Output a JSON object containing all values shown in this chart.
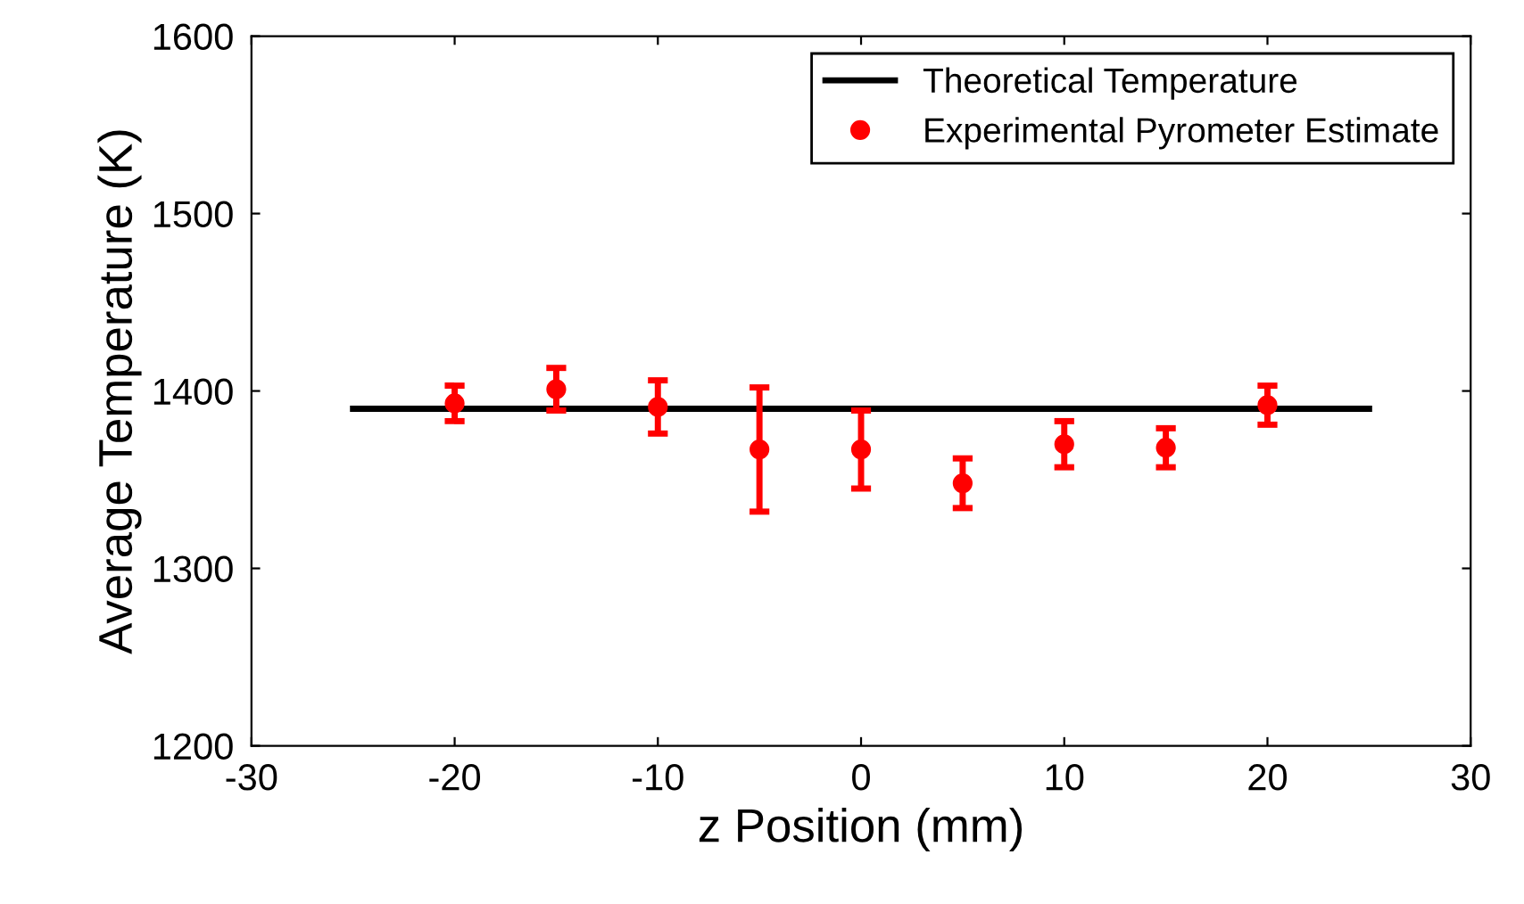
{
  "chart_data": {
    "type": "scatter",
    "xlabel": "z Position (mm)",
    "ylabel": "Average Temperature (K)",
    "xlim": [
      -30,
      30
    ],
    "xticks": [
      -30,
      -20,
      -10,
      0,
      10,
      20,
      30
    ],
    "ylim": [
      1200,
      1600
    ],
    "yticks": [
      1200,
      1300,
      1400,
      1500,
      1600
    ],
    "grid": false,
    "legend": "top right",
    "series": [
      {
        "name": "Theoretical Temperature",
        "type": "line",
        "color": "#000000",
        "marker": "none",
        "line_style": "solid",
        "x": [
          -25,
          25
        ],
        "values": [
          1390,
          1390
        ]
      },
      {
        "name": "Experimental Pyrometer Estimate",
        "color": "#ff0000",
        "marker": "circle",
        "x": [
          -20,
          -15,
          -10,
          -5,
          0,
          5,
          10,
          15,
          20
        ],
        "values": [
          1393,
          1401,
          1391,
          1367,
          1367,
          1348,
          1370,
          1368,
          1392
        ],
        "errors": [
          10,
          12,
          15,
          35,
          22,
          14,
          13,
          11,
          11
        ]
      }
    ]
  }
}
